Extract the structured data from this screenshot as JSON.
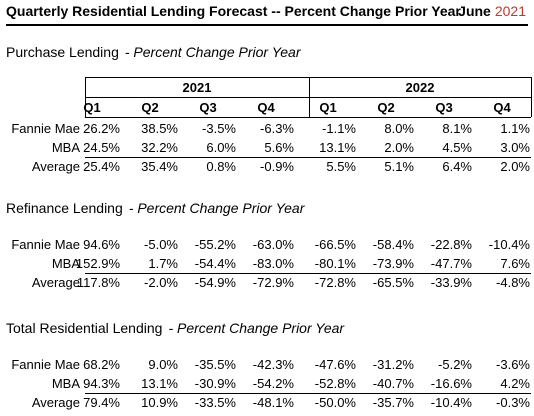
{
  "header": {
    "title": "Quarterly Residential Lending Forecast -- Percent Change Prior Year",
    "month": "June",
    "year": "2021"
  },
  "years": [
    "2021",
    "2022"
  ],
  "quarters": [
    "Q1",
    "Q2",
    "Q3",
    "Q4",
    "Q1",
    "Q2",
    "Q3",
    "Q4"
  ],
  "sections": [
    {
      "name": "Purchase Lending",
      "subtitle": "- Percent Change Prior Year",
      "rows": [
        {
          "label": "Fannie Mae",
          "values": [
            "26.2%",
            "38.5%",
            "-3.5%",
            "-6.3%",
            "-1.1%",
            "8.0%",
            "8.1%",
            "1.1%"
          ]
        },
        {
          "label": "MBA",
          "values": [
            "24.5%",
            "32.2%",
            "6.0%",
            "5.6%",
            "13.1%",
            "2.0%",
            "4.5%",
            "3.0%"
          ]
        },
        {
          "label": "Average",
          "values": [
            "25.4%",
            "35.4%",
            "0.8%",
            "-0.9%",
            "5.5%",
            "5.1%",
            "6.4%",
            "2.0%"
          ]
        }
      ]
    },
    {
      "name": "Refinance Lending",
      "subtitle": "- Percent Change Prior Year",
      "rows": [
        {
          "label": "Fannie Mae",
          "values": [
            "94.6%",
            "-5.0%",
            "-55.2%",
            "-63.0%",
            "-66.5%",
            "-58.4%",
            "-22.8%",
            "-10.4%"
          ]
        },
        {
          "label": "MBA",
          "values": [
            "152.9%",
            "1.7%",
            "-54.4%",
            "-83.0%",
            "-80.1%",
            "-73.9%",
            "-47.7%",
            "7.6%"
          ]
        },
        {
          "label": "Average",
          "values": [
            "117.8%",
            "-2.0%",
            "-54.9%",
            "-72.9%",
            "-72.8%",
            "-65.5%",
            "-33.9%",
            "-4.8%"
          ]
        }
      ]
    },
    {
      "name": "Total Residential Lending",
      "subtitle": "- Percent Change Prior Year",
      "rows": [
        {
          "label": "Fannie Mae",
          "values": [
            "68.2%",
            "9.0%",
            "-35.5%",
            "-42.3%",
            "-47.6%",
            "-31.2%",
            "-5.2%",
            "-3.6%"
          ]
        },
        {
          "label": "MBA",
          "values": [
            "94.3%",
            "13.1%",
            "-30.9%",
            "-54.2%",
            "-52.8%",
            "-40.7%",
            "-16.6%",
            "4.2%"
          ]
        },
        {
          "label": "Average",
          "values": [
            "79.4%",
            "10.9%",
            "-33.5%",
            "-48.1%",
            "-50.0%",
            "-35.7%",
            "-10.4%",
            "-0.3%"
          ]
        }
      ]
    }
  ]
}
